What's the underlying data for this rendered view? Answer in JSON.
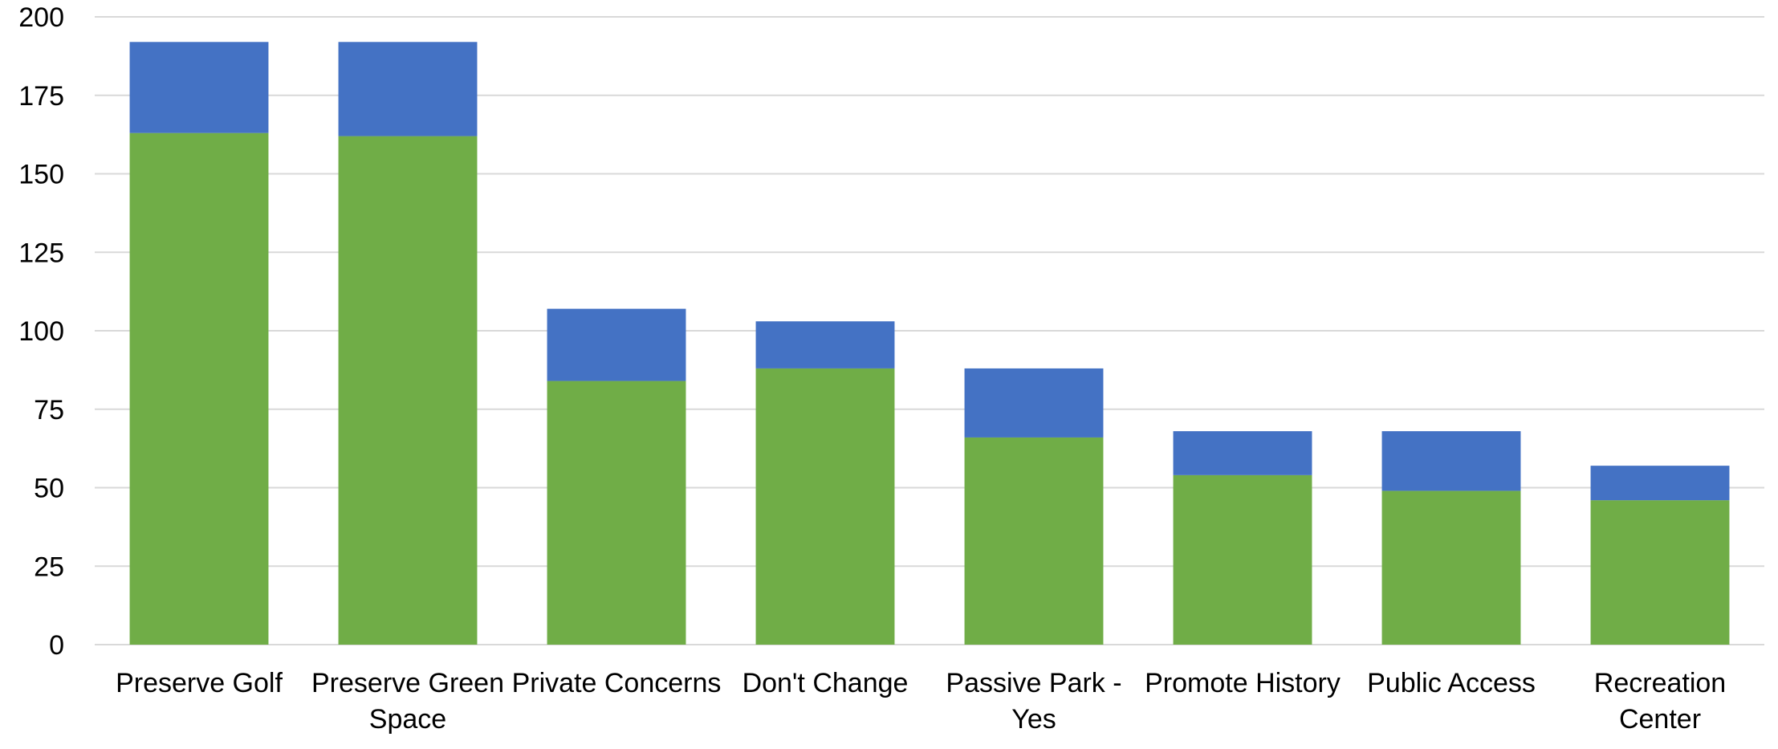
{
  "chart_data": {
    "type": "bar",
    "stacked": true,
    "categories": [
      [
        "Preserve Golf"
      ],
      [
        "Preserve Green",
        "Space"
      ],
      [
        "Private Concerns"
      ],
      [
        "Don't Change"
      ],
      [
        "Passive Park -",
        "Yes"
      ],
      [
        "Promote History"
      ],
      [
        "Public Access"
      ],
      [
        "Recreation",
        "Center"
      ]
    ],
    "series": [
      {
        "color": "#70ad47",
        "values": [
          163,
          162,
          84,
          88,
          66,
          54,
          49,
          46
        ]
      },
      {
        "color": "#4472c4",
        "values": [
          29,
          30,
          23,
          15,
          22,
          14,
          19,
          11
        ]
      }
    ],
    "ylim": [
      0,
      200
    ],
    "yticks": [
      0,
      25,
      50,
      75,
      100,
      125,
      150,
      175,
      200
    ],
    "grid": true,
    "legend": "none"
  }
}
